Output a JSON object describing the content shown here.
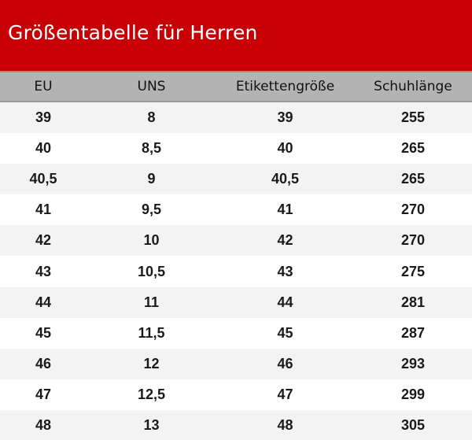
{
  "title": "Größentabelle für Herren",
  "colors": {
    "title_bg": "#c70006",
    "header_bg": "#b3b3b3",
    "row_alt_bg": "#f3f3f3",
    "row_bg": "#ffffff"
  },
  "table": {
    "headers": [
      "EU",
      "UNS",
      "Etikettengröße",
      "Schuhlänge"
    ],
    "rows": [
      [
        "39",
        "8",
        "39",
        "255"
      ],
      [
        "40",
        "8,5",
        "40",
        "265"
      ],
      [
        "40,5",
        "9",
        "40,5",
        "265"
      ],
      [
        "41",
        "9,5",
        "41",
        "270"
      ],
      [
        "42",
        "10",
        "42",
        "270"
      ],
      [
        "43",
        "10,5",
        "43",
        "275"
      ],
      [
        "44",
        "11",
        "44",
        "281"
      ],
      [
        "45",
        "11,5",
        "45",
        "287"
      ],
      [
        "46",
        "12",
        "46",
        "293"
      ],
      [
        "47",
        "12,5",
        "47",
        "299"
      ],
      [
        "48",
        "13",
        "48",
        "305"
      ]
    ]
  }
}
